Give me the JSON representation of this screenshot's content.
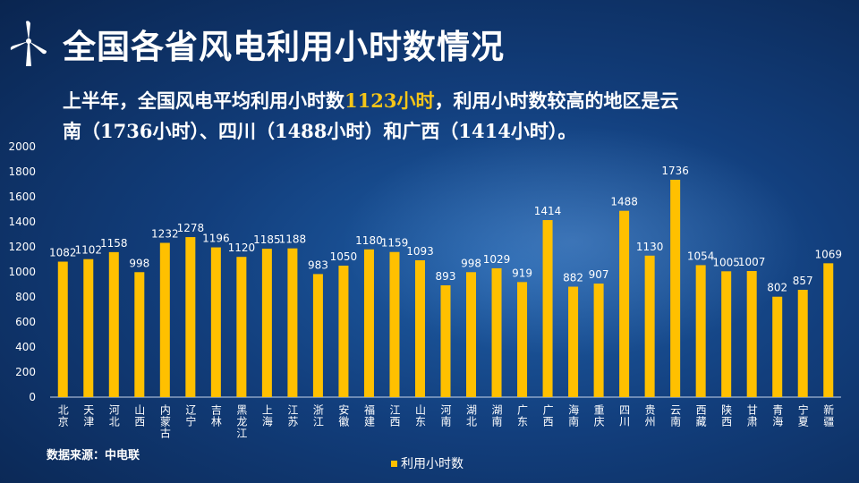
{
  "header": {
    "title": "全国各省风电利用小时数情况",
    "subtitle_parts": {
      "p1": "上半年，全国风电平均利用小时数",
      "p2": "1123小时",
      "p3": "，利用小时数较高的地区是云南（",
      "p4": "1736",
      "p5": "小时）、四川（",
      "p6": "1488",
      "p7": "小时）和广西（",
      "p8": "1414",
      "p9": "小时）。"
    }
  },
  "source": "数据来源：中电联",
  "colors": {
    "bar": "#ffc000",
    "highlight": "#f5c518",
    "text": "#ffffff"
  },
  "chart_data": {
    "type": "bar",
    "categories": [
      "北京",
      "天津",
      "河北",
      "山西",
      "内蒙古",
      "辽宁",
      "吉林",
      "黑龙江",
      "上海",
      "江苏",
      "浙江",
      "安徽",
      "福建",
      "江西",
      "山东",
      "河南",
      "湖北",
      "湖南",
      "广东",
      "广西",
      "海南",
      "重庆",
      "四川",
      "贵州",
      "云南",
      "西藏",
      "陕西",
      "甘肃",
      "青海",
      "宁夏",
      "新疆"
    ],
    "series": [
      {
        "name": "利用小时数",
        "values": [
          1082,
          1102,
          1158,
          998,
          1232,
          1278,
          1196,
          1120,
          1185,
          1188,
          983,
          1050,
          1180,
          1159,
          1093,
          893,
          998,
          1029,
          919,
          1414,
          882,
          907,
          1488,
          1130,
          1736,
          1054,
          1005,
          1007,
          802,
          857,
          1069
        ]
      }
    ],
    "ylim": [
      0,
      2000
    ],
    "yticks": [
      0,
      200,
      400,
      600,
      800,
      1000,
      1200,
      1400,
      1600,
      1800,
      2000
    ],
    "grid": false,
    "legend": "bottom"
  }
}
